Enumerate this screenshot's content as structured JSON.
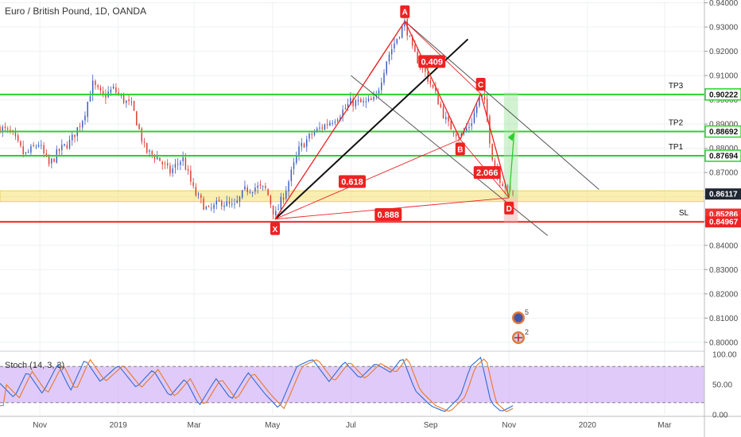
{
  "chart_data": {
    "type": "candlestick",
    "title": "Euro / British Pound, 1D, OANDA",
    "price_axis": {
      "range": [
        0.797,
        0.9405
      ],
      "ticks": [
        "0.94000",
        "0.93000",
        "0.92000",
        "0.91000",
        "0.90000",
        "0.89000",
        "0.88000",
        "0.87000",
        "0.86000",
        "0.85000",
        "0.84000",
        "0.83000",
        "0.82000",
        "0.81000",
        "0.80000"
      ]
    },
    "time_axis": {
      "range": [
        "2018-10-01",
        "2020-04-01"
      ],
      "ticks": [
        {
          "date": "2018-11-01",
          "label": "Nov"
        },
        {
          "date": "2019-01-01",
          "label": "2019"
        },
        {
          "date": "2019-03-01",
          "label": "Mar"
        },
        {
          "date": "2019-05-01",
          "label": "May"
        },
        {
          "date": "2019-07-01",
          "label": "Jul"
        },
        {
          "date": "2019-09-01",
          "label": "Sep"
        },
        {
          "date": "2019-11-01",
          "label": "Nov"
        },
        {
          "date": "2020-01-01",
          "label": "2020"
        },
        {
          "date": "2020-03-01",
          "label": "Mar"
        }
      ]
    },
    "close_path": [
      [
        "2018-10-01",
        0.8885
      ],
      [
        "2018-10-10",
        0.886
      ],
      [
        "2018-10-20",
        0.877
      ],
      [
        "2018-10-31",
        0.882
      ],
      [
        "2018-11-08",
        0.873
      ],
      [
        "2018-11-16",
        0.879
      ],
      [
        "2018-11-25",
        0.883
      ],
      [
        "2018-12-05",
        0.893
      ],
      [
        "2018-12-12",
        0.9065
      ],
      [
        "2018-12-20",
        0.901
      ],
      [
        "2018-12-28",
        0.9045
      ],
      [
        "2019-01-05",
        0.9
      ],
      [
        "2019-01-12",
        0.897
      ],
      [
        "2019-01-22",
        0.879
      ],
      [
        "2019-02-01",
        0.876
      ],
      [
        "2019-02-10",
        0.87
      ],
      [
        "2019-02-20",
        0.876
      ],
      [
        "2019-03-01",
        0.862
      ],
      [
        "2019-03-12",
        0.854
      ],
      [
        "2019-03-22",
        0.858
      ],
      [
        "2019-04-01",
        0.8555
      ],
      [
        "2019-04-10",
        0.863
      ],
      [
        "2019-04-18",
        0.864
      ],
      [
        "2019-04-26",
        0.863
      ],
      [
        "2019-05-03",
        0.852
      ],
      [
        "2019-05-12",
        0.864
      ],
      [
        "2019-05-22",
        0.88
      ],
      [
        "2019-06-01",
        0.886
      ],
      [
        "2019-06-12",
        0.89
      ],
      [
        "2019-06-22",
        0.894
      ],
      [
        "2019-07-01",
        0.899
      ],
      [
        "2019-07-12",
        0.8985
      ],
      [
        "2019-07-20",
        0.9
      ],
      [
        "2019-07-29",
        0.917
      ],
      [
        "2019-08-08",
        0.928
      ],
      [
        "2019-08-12",
        0.932
      ],
      [
        "2019-08-18",
        0.92
      ],
      [
        "2019-08-27",
        0.912
      ],
      [
        "2019-09-05",
        0.902
      ],
      [
        "2019-09-14",
        0.89
      ],
      [
        "2019-09-24",
        0.885
      ],
      [
        "2019-10-02",
        0.89
      ],
      [
        "2019-10-10",
        0.902
      ],
      [
        "2019-10-14",
        0.897
      ],
      [
        "2019-10-18",
        0.879
      ],
      [
        "2019-10-22",
        0.87
      ],
      [
        "2019-10-28",
        0.865
      ],
      [
        "2019-11-04",
        0.8611
      ]
    ],
    "stoch_path": [
      [
        "2018-10-01",
        52
      ],
      [
        "2018-10-12",
        28
      ],
      [
        "2018-10-22",
        72
      ],
      [
        "2018-11-03",
        35
      ],
      [
        "2018-11-15",
        84
      ],
      [
        "2018-11-25",
        40
      ],
      [
        "2018-12-06",
        92
      ],
      [
        "2018-12-18",
        55
      ],
      [
        "2019-01-01",
        82
      ],
      [
        "2019-01-15",
        45
      ],
      [
        "2019-01-28",
        75
      ],
      [
        "2019-02-10",
        30
      ],
      [
        "2019-02-22",
        60
      ],
      [
        "2019-03-05",
        15
      ],
      [
        "2019-03-18",
        60
      ],
      [
        "2019-03-30",
        25
      ],
      [
        "2019-04-12",
        70
      ],
      [
        "2019-04-25",
        35
      ],
      [
        "2019-05-06",
        10
      ],
      [
        "2019-05-20",
        80
      ],
      [
        "2019-06-01",
        92
      ],
      [
        "2019-06-14",
        55
      ],
      [
        "2019-06-26",
        88
      ],
      [
        "2019-07-08",
        60
      ],
      [
        "2019-07-20",
        85
      ],
      [
        "2019-08-01",
        70
      ],
      [
        "2019-08-10",
        95
      ],
      [
        "2019-08-20",
        40
      ],
      [
        "2019-09-01",
        15
      ],
      [
        "2019-09-12",
        5
      ],
      [
        "2019-09-24",
        30
      ],
      [
        "2019-10-02",
        80
      ],
      [
        "2019-10-10",
        95
      ],
      [
        "2019-10-18",
        20
      ],
      [
        "2019-10-26",
        5
      ],
      [
        "2019-11-04",
        15
      ]
    ],
    "candle_count": 200,
    "pattern_points": [
      {
        "label": "X",
        "date": "2019-05-03",
        "price": 0.8508
      },
      {
        "label": "A",
        "date": "2019-08-12",
        "price": 0.9324
      },
      {
        "label": "B",
        "date": "2019-09-24",
        "price": 0.8837
      },
      {
        "label": "C",
        "date": "2019-10-10",
        "price": 0.9025
      },
      {
        "label": "D",
        "date": "2019-11-01",
        "price": 0.8596
      }
    ],
    "ratios": [
      {
        "label": "0.409",
        "date": "2019-09-02",
        "price": 0.9158
      },
      {
        "label": "0.618",
        "date": "2019-07-02",
        "price": 0.8663
      },
      {
        "label": "2.066",
        "date": "2019-10-15",
        "price": 0.87
      },
      {
        "label": "0.888",
        "date": "2019-07-30",
        "price": 0.8527
      }
    ],
    "levels": [
      {
        "label": "TP3",
        "value": "0.90222",
        "price": 0.90222,
        "color": "#2ad12a"
      },
      {
        "label": "TP2",
        "value": "0.88692",
        "price": 0.88692,
        "color": "#2ad12a"
      },
      {
        "label": "TP1",
        "value": "0.87694",
        "price": 0.87694,
        "color": "#2ad12a"
      },
      {
        "label": "SL",
        "value": "0.84967",
        "price": 0.84967,
        "color": "#ee2222"
      }
    ],
    "current_price": {
      "value": "0.86117",
      "price": 0.86117
    },
    "partial_tag": {
      "value": "0.85286",
      "price": 0.85286
    },
    "stoch": {
      "label": "Stoch (14, 3, 3)",
      "ticks": [
        "100.00",
        "50.00",
        "0.00"
      ],
      "range": [
        0,
        100
      ],
      "bands": [
        80,
        20
      ]
    },
    "event_badges": [
      {
        "count": "5"
      },
      {
        "count": "2"
      }
    ],
    "colors": {
      "up": "#3a5cc2",
      "down": "#e03a2e",
      "pattern": "#ee2222",
      "support": "#f5e070"
    }
  }
}
